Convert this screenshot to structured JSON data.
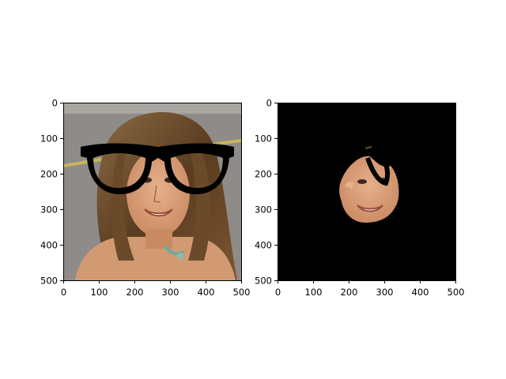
{
  "chart_data": [
    {
      "type": "image",
      "panel": "left",
      "xlim": [
        0,
        500
      ],
      "ylim": [
        500,
        0
      ],
      "xticks": [
        0,
        100,
        200,
        300,
        400,
        500
      ],
      "yticks": [
        0,
        100,
        200,
        300,
        400,
        500
      ],
      "xtick_labels": [
        "0",
        "100",
        "200",
        "300",
        "400",
        "500"
      ],
      "ytick_labels": [
        "0",
        "100",
        "200",
        "300",
        "400",
        "500"
      ],
      "content": "photo-with-glasses-overlay"
    },
    {
      "type": "image",
      "panel": "right",
      "xlim": [
        0,
        500
      ],
      "ylim": [
        500,
        0
      ],
      "xticks": [
        0,
        100,
        200,
        300,
        400,
        500
      ],
      "yticks": [
        0,
        100,
        200,
        300,
        400,
        500
      ],
      "xtick_labels": [
        "0",
        "100",
        "200",
        "300",
        "400",
        "500"
      ],
      "ytick_labels": [
        "0",
        "100",
        "200",
        "300",
        "400",
        "500"
      ],
      "content": "masked-face-region"
    }
  ],
  "colors": {
    "background": "#ffffff",
    "mask": "#000000",
    "road": "#8e8b88",
    "hair": "#6b4a2a",
    "skin": "#d9a27c",
    "glasses": "#000000",
    "road_line": "#c8b458"
  }
}
